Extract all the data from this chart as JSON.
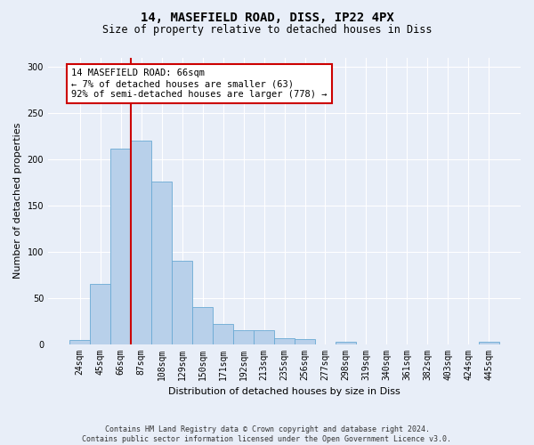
{
  "title1": "14, MASEFIELD ROAD, DISS, IP22 4PX",
  "title2": "Size of property relative to detached houses in Diss",
  "xlabel": "Distribution of detached houses by size in Diss",
  "ylabel": "Number of detached properties",
  "categories": [
    "24sqm",
    "45sqm",
    "66sqm",
    "87sqm",
    "108sqm",
    "129sqm",
    "150sqm",
    "171sqm",
    "192sqm",
    "213sqm",
    "235sqm",
    "256sqm",
    "277sqm",
    "298sqm",
    "319sqm",
    "340sqm",
    "361sqm",
    "382sqm",
    "403sqm",
    "424sqm",
    "445sqm"
  ],
  "values": [
    4,
    65,
    212,
    220,
    176,
    90,
    40,
    22,
    15,
    15,
    6,
    5,
    0,
    2,
    0,
    0,
    0,
    0,
    0,
    0,
    2
  ],
  "bar_color": "#b8d0ea",
  "bar_edge_color": "#6aaad4",
  "vline_index": 2,
  "vline_color": "#cc0000",
  "annotation_text": "14 MASEFIELD ROAD: 66sqm\n← 7% of detached houses are smaller (63)\n92% of semi-detached houses are larger (778) →",
  "annotation_box_facecolor": "#ffffff",
  "annotation_box_edgecolor": "#cc0000",
  "ylim": [
    0,
    310
  ],
  "yticks": [
    0,
    50,
    100,
    150,
    200,
    250,
    300
  ],
  "footer": "Contains HM Land Registry data © Crown copyright and database right 2024.\nContains public sector information licensed under the Open Government Licence v3.0.",
  "bg_color": "#e8eef8",
  "plot_bg_color": "#e8eef8",
  "title1_fontsize": 10,
  "title2_fontsize": 8.5,
  "xlabel_fontsize": 8,
  "ylabel_fontsize": 8,
  "tick_fontsize": 7,
  "annotation_fontsize": 7.5,
  "footer_fontsize": 6
}
